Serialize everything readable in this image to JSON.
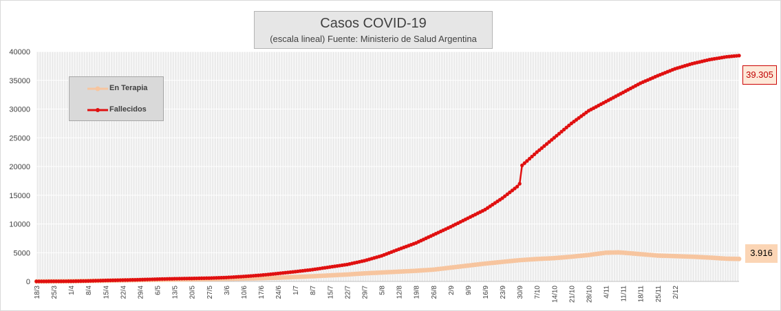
{
  "chart_data": {
    "type": "line",
    "title": "Casos COVID-19",
    "subtitle": "(escala lineal) Fuente: Ministerio de Salud Argentina",
    "y_ticks": [
      0,
      5000,
      10000,
      15000,
      20000,
      25000,
      30000,
      35000,
      40000
    ],
    "ylim": [
      0,
      40000
    ],
    "x_tick_labels": [
      "18/3",
      "25/3",
      "1/4",
      "8/4",
      "15/4",
      "22/4",
      "29/4",
      "6/5",
      "13/5",
      "20/5",
      "27/5",
      "3/6",
      "10/6",
      "17/6",
      "24/6",
      "1/7",
      "8/7",
      "15/7",
      "22/7",
      "29/7",
      "5/8",
      "12/8",
      "19/8",
      "26/8",
      "2/9",
      "9/9",
      "16/9",
      "23/9",
      "30/9",
      "7/10",
      "14/10",
      "21/10",
      "28/10",
      "4/11",
      "11/11",
      "18/11",
      "25/11",
      "2/12"
    ],
    "grid": true,
    "legend_position": "top-left",
    "series": [
      {
        "name": "En Terapia",
        "color": "#f7c59f",
        "anchors": [
          [
            0,
            0
          ],
          [
            7,
            10
          ],
          [
            14,
            40
          ],
          [
            21,
            90
          ],
          [
            28,
            120
          ],
          [
            35,
            180
          ],
          [
            42,
            240
          ],
          [
            49,
            280
          ],
          [
            56,
            320
          ],
          [
            63,
            360
          ],
          [
            70,
            400
          ],
          [
            77,
            450
          ],
          [
            84,
            500
          ],
          [
            91,
            560
          ],
          [
            98,
            650
          ],
          [
            105,
            780
          ],
          [
            112,
            900
          ],
          [
            119,
            1050
          ],
          [
            126,
            1200
          ],
          [
            133,
            1400
          ],
          [
            140,
            1550
          ],
          [
            147,
            1700
          ],
          [
            154,
            1850
          ],
          [
            161,
            2050
          ],
          [
            168,
            2400
          ],
          [
            175,
            2750
          ],
          [
            182,
            3100
          ],
          [
            189,
            3400
          ],
          [
            196,
            3700
          ],
          [
            203,
            3900
          ],
          [
            210,
            4050
          ],
          [
            217,
            4300
          ],
          [
            224,
            4600
          ],
          [
            231,
            5000
          ],
          [
            236,
            5050
          ],
          [
            238,
            5000
          ],
          [
            245,
            4750
          ],
          [
            252,
            4500
          ],
          [
            259,
            4400
          ],
          [
            266,
            4300
          ],
          [
            273,
            4150
          ],
          [
            280,
            3950
          ],
          [
            285,
            3916
          ]
        ],
        "final_label": "3.916"
      },
      {
        "name": "Fallecidos",
        "color": "#e01010",
        "anchors": [
          [
            0,
            0
          ],
          [
            7,
            20
          ],
          [
            14,
            30
          ],
          [
            21,
            80
          ],
          [
            28,
            170
          ],
          [
            35,
            230
          ],
          [
            42,
            300
          ],
          [
            49,
            400
          ],
          [
            56,
            470
          ],
          [
            63,
            520
          ],
          [
            70,
            580
          ],
          [
            77,
            680
          ],
          [
            84,
            860
          ],
          [
            91,
            1080
          ],
          [
            98,
            1380
          ],
          [
            105,
            1700
          ],
          [
            112,
            2050
          ],
          [
            119,
            2500
          ],
          [
            126,
            2940
          ],
          [
            133,
            3600
          ],
          [
            140,
            4450
          ],
          [
            147,
            5600
          ],
          [
            154,
            6700
          ],
          [
            161,
            8100
          ],
          [
            168,
            9500
          ],
          [
            175,
            11000
          ],
          [
            182,
            12500
          ],
          [
            189,
            14500
          ],
          [
            195,
            16500
          ],
          [
            196,
            17000
          ],
          [
            197,
            20200
          ],
          [
            203,
            22500
          ],
          [
            210,
            25000
          ],
          [
            217,
            27500
          ],
          [
            224,
            29700
          ],
          [
            231,
            31300
          ],
          [
            238,
            32900
          ],
          [
            245,
            34500
          ],
          [
            252,
            35800
          ],
          [
            259,
            37000
          ],
          [
            266,
            37900
          ],
          [
            273,
            38600
          ],
          [
            280,
            39100
          ],
          [
            285,
            39305
          ]
        ],
        "final_label": "39.305"
      }
    ]
  }
}
